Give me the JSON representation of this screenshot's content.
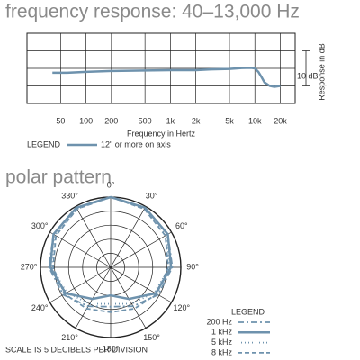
{
  "chart_data": [
    {
      "type": "line",
      "title": "frequency response: 40–13,000 Hz",
      "xlabel": "Frequency in Hertz",
      "ylabel": "Response in dB",
      "scale_note": "10 dB",
      "log_x": true,
      "xlim": [
        20,
        30000
      ],
      "ylim": [
        -20,
        20
      ],
      "xticks": [
        50,
        100,
        200,
        500,
        {
          "value": 1000,
          "label": "1k"
        },
        {
          "value": 2000,
          "label": "2k"
        },
        {
          "value": 5000,
          "label": "5k"
        },
        {
          "value": 10000,
          "label": "10k"
        },
        {
          "value": 20000,
          "label": "20k"
        }
      ],
      "ygrid": [
        -20,
        -10,
        0,
        10,
        20
      ],
      "grid": true,
      "legend_title": "LEGEND",
      "series": [
        {
          "name": "12\" or more on axis",
          "color": "#6e92ad",
          "x": [
            40,
            60,
            100,
            200,
            500,
            1000,
            2000,
            3000,
            5000,
            7000,
            9000,
            10000,
            11000,
            12000,
            13000,
            15000,
            17000,
            20000
          ],
          "values": [
            -2.5,
            -2.5,
            -2,
            -1.5,
            -1.2,
            -1,
            -1,
            -0.6,
            -0.3,
            0.2,
            0.3,
            0,
            -2,
            -5,
            -8,
            -10,
            -10.5,
            -10
          ]
        }
      ]
    },
    {
      "type": "polar",
      "title": "polar pattern",
      "note": "SCALE IS 5 DECIBELS PER DIVISION",
      "rlim": [
        -25,
        0
      ],
      "rgrid": [
        -20,
        -15,
        -10,
        -5,
        0
      ],
      "theta": [
        {
          "value": 0,
          "label": "0°"
        },
        {
          "value": 30,
          "label": "30°"
        },
        {
          "value": 60,
          "label": "60°"
        },
        {
          "value": 90,
          "label": "90°"
        },
        {
          "value": 120,
          "label": "120°"
        },
        {
          "value": 150,
          "label": "150°"
        },
        {
          "value": 180,
          "label": "180°"
        },
        {
          "value": 210,
          "label": "210°"
        },
        {
          "value": 240,
          "label": "240°"
        },
        {
          "value": 270,
          "label": "270°"
        },
        {
          "value": 300,
          "label": "300°"
        },
        {
          "value": 330,
          "label": "330°"
        }
      ],
      "legend_title": "LEGEND",
      "series": [
        {
          "name": "200 Hz",
          "color": "#6e92ad",
          "dash": "dash-dot",
          "values": [
            0,
            -0.5,
            -1.5,
            -3,
            -5.5,
            -9,
            -11,
            -9,
            -5.5,
            -3,
            -1.5,
            -0.5
          ]
        },
        {
          "name": "1 kHz",
          "color": "#6e92ad",
          "dash": "solid",
          "values": [
            0,
            -0.5,
            -1.5,
            -3.5,
            -6.5,
            -12,
            -15,
            -12,
            -6.5,
            -3.5,
            -1.5,
            -0.5
          ]
        },
        {
          "name": "5 kHz",
          "color": "#6e92ad",
          "dash": "dotted",
          "values": [
            0,
            -1,
            -2,
            -4,
            -7,
            -10,
            -12,
            -10,
            -7,
            -4,
            -2,
            -1
          ]
        },
        {
          "name": "8 kHz",
          "color": "#6e92ad",
          "dash": "dashed",
          "values": [
            0,
            -1,
            -2.5,
            -4.5,
            -6,
            -8,
            -9,
            -8,
            -6,
            -4.5,
            -2.5,
            -1
          ]
        }
      ]
    }
  ]
}
